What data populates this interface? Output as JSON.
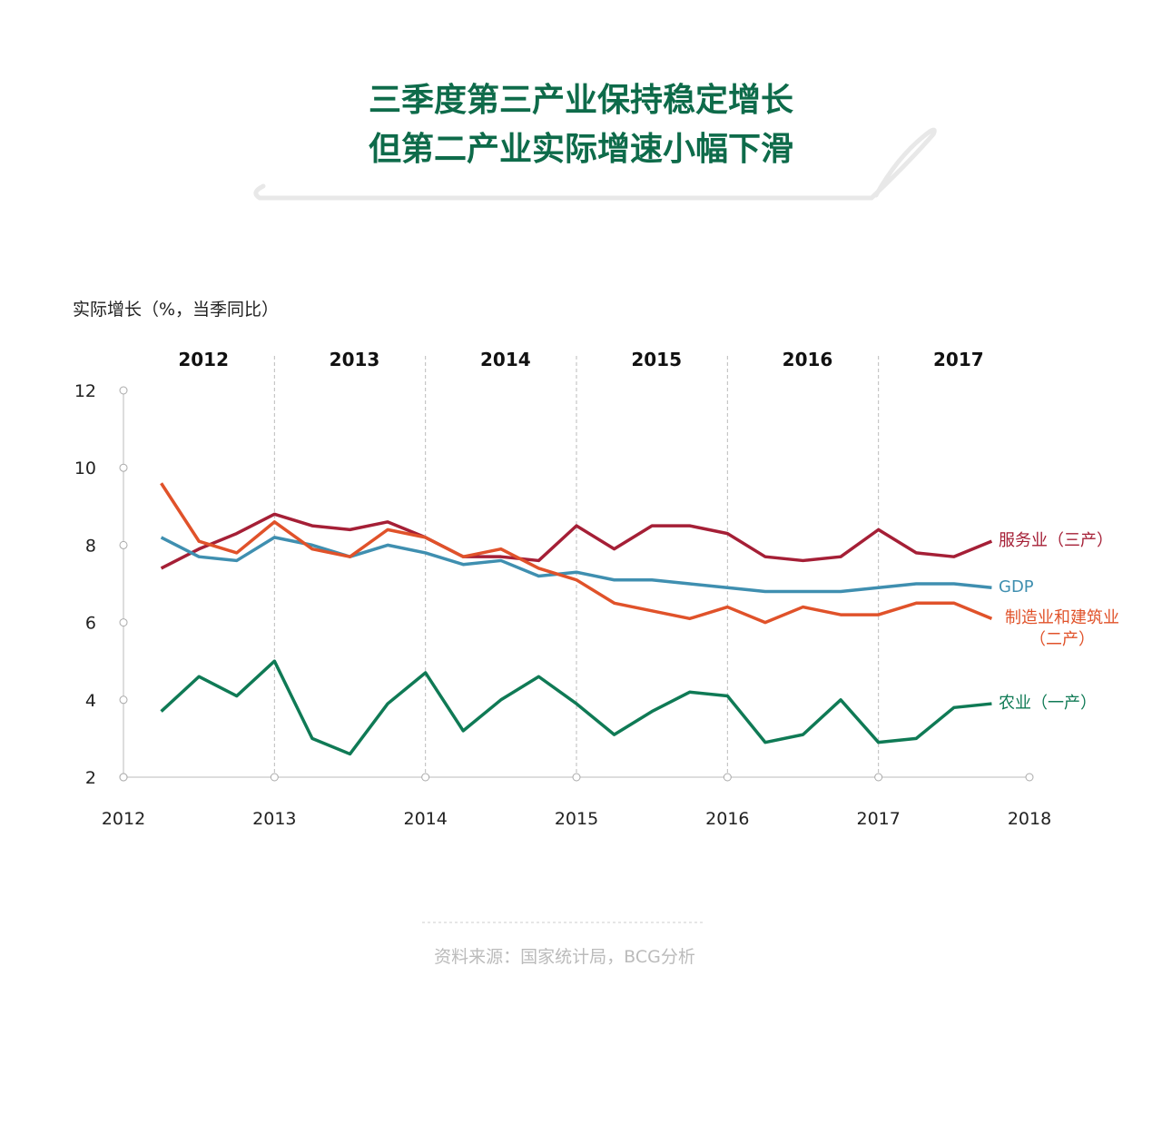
{
  "chart_data": {
    "type": "line",
    "title": "三季度第三产业保持稳定增长",
    "subtitle": "但第二产业实际增速小幅下滑",
    "y_label": "实际增长（%，当季同比）",
    "period_labels": [
      "2012",
      "2013",
      "2014",
      "2015",
      "2016",
      "2017"
    ],
    "source": "资料来源：国家统计局，BCG分析",
    "x": [
      2012.25,
      2012.5,
      2012.75,
      2013,
      2013.25,
      2013.5,
      2013.75,
      2014,
      2014.25,
      2014.5,
      2014.75,
      2015,
      2015.25,
      2015.5,
      2015.75,
      2016,
      2016.25,
      2016.5,
      2016.75,
      2017,
      2017.25,
      2017.5,
      2017.75
    ],
    "xlim": [
      2012,
      2018
    ],
    "xticks": [
      2012,
      2013,
      2014,
      2015,
      2016,
      2017,
      2018
    ],
    "ylim": [
      2,
      12
    ],
    "yticks": [
      2,
      4,
      6,
      8,
      10,
      12
    ],
    "series": [
      {
        "name": "服务业（三产）",
        "color": "#a51f36",
        "values": [
          7.4,
          7.9,
          8.3,
          8.8,
          8.5,
          8.4,
          8.6,
          8.2,
          7.7,
          7.7,
          7.6,
          8.5,
          7.9,
          8.5,
          8.5,
          8.3,
          7.7,
          7.6,
          7.7,
          8.4,
          7.8,
          7.7,
          8.1
        ]
      },
      {
        "name": "GDP",
        "color": "#3f8fb0",
        "values": [
          8.2,
          7.7,
          7.6,
          8.2,
          8.0,
          7.7,
          8.0,
          7.8,
          7.5,
          7.6,
          7.2,
          7.3,
          7.1,
          7.1,
          7.0,
          6.9,
          6.8,
          6.8,
          6.8,
          6.9,
          7.0,
          7.0,
          6.9
        ]
      },
      {
        "name": "制造业和建筑业（二产）",
        "color": "#e0522a",
        "values": [
          9.6,
          8.1,
          7.8,
          8.6,
          7.9,
          7.7,
          8.4,
          8.2,
          7.7,
          7.9,
          7.4,
          7.1,
          6.5,
          6.3,
          6.1,
          6.4,
          6.0,
          6.4,
          6.2,
          6.2,
          6.5,
          6.5,
          6.1
        ]
      },
      {
        "name": "农业（一产）",
        "color": "#0f7a55",
        "values": [
          3.7,
          4.6,
          4.1,
          5.0,
          3.0,
          2.6,
          3.9,
          4.7,
          3.2,
          4.0,
          4.6,
          3.9,
          3.1,
          3.7,
          4.2,
          4.1,
          2.9,
          3.1,
          4.0,
          2.9,
          3.0,
          3.8,
          3.9
        ]
      }
    ]
  }
}
